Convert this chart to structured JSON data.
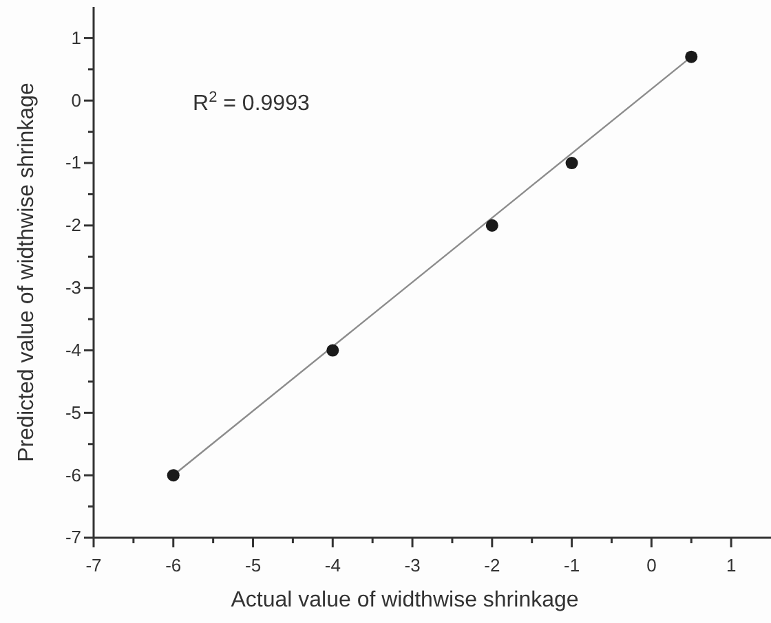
{
  "chart_data": {
    "type": "scatter",
    "xlabel": "Actual value of widthwise shrinkage",
    "ylabel": "Predicted value of widthwise shrinkage",
    "annotations": [
      "R$^{2}$ = 0.9993"
    ],
    "xlim": [
      -7,
      1.5
    ],
    "ylim": [
      -7,
      1.5
    ],
    "xticks": [
      -7,
      {
        "value": -6.5,
        "label": null
      },
      -6,
      {
        "value": -5.5,
        "label": null
      },
      -5,
      {
        "value": -4.5,
        "label": null
      },
      -4,
      {
        "value": -3.5,
        "label": null
      },
      -3,
      {
        "value": -2.5,
        "label": null
      },
      -2,
      {
        "value": -1.5,
        "label": null
      },
      -1,
      {
        "value": -0.5,
        "label": null
      },
      0,
      {
        "value": 0.5,
        "label": null
      },
      1
    ],
    "yticks": [
      -7,
      {
        "value": -6.5,
        "label": null
      },
      -6,
      {
        "value": -5.5,
        "label": null
      },
      -5,
      {
        "value": -4.5,
        "label": null
      },
      -4,
      {
        "value": -3.5,
        "label": null
      },
      -3,
      {
        "value": -2.5,
        "label": null
      },
      -2,
      {
        "value": -1.5,
        "label": null
      },
      -1,
      {
        "value": -0.5,
        "label": null
      },
      0,
      {
        "value": 0.5,
        "label": null
      },
      1
    ],
    "series": [
      {
        "type": "line",
        "marker": "none",
        "color": "#8c8c8c",
        "x": [
          -6,
          0.5
        ],
        "values": [
          -6,
          0.7
        ]
      },
      {
        "marker": "circle",
        "color": "#1a1a1a",
        "x": [
          -6,
          -4,
          -2,
          -1,
          0.5
        ],
        "values": [
          -6,
          -4,
          -2,
          -1,
          0.7
        ]
      }
    ]
  }
}
